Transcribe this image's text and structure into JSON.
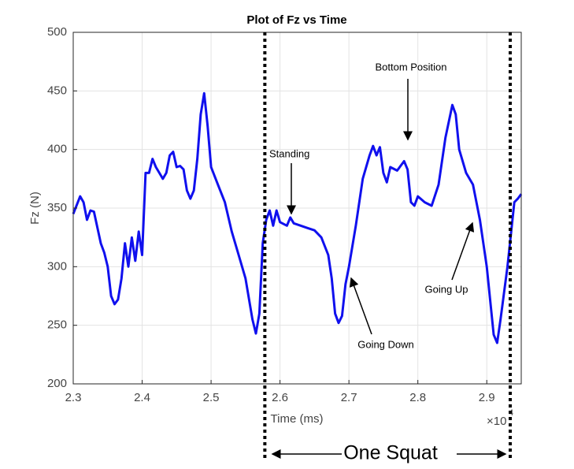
{
  "chart_data": {
    "type": "line",
    "title": "Plot of Fz vs Time",
    "x_label": "Time (ms)",
    "y_label": "Fz (N)",
    "x_multiplier": "×10",
    "x_multiplier_power": "4",
    "color": "#1010ee",
    "grid": true,
    "x": [
      23000,
      23100,
      23150,
      23200,
      23250,
      23300,
      23400,
      23450,
      23500,
      23550,
      23600,
      23650,
      23700,
      23750,
      23800,
      23850,
      23900,
      23950,
      24000,
      24050,
      24100,
      24150,
      24200,
      24250,
      24300,
      24350,
      24400,
      24450,
      24500,
      24550,
      24600,
      24650,
      24700,
      24750,
      24800,
      24850,
      24900,
      24950,
      25000,
      25100,
      25200,
      25300,
      25400,
      25500,
      25600,
      25650,
      25700,
      25750,
      25800,
      25850,
      25900,
      25950,
      26000,
      26100,
      26150,
      26200,
      26300,
      26400,
      26500,
      26600,
      26700,
      26750,
      26800,
      26850,
      26900,
      26950,
      27000,
      27100,
      27200,
      27300,
      27350,
      27400,
      27450,
      27500,
      27550,
      27600,
      27700,
      27800,
      27850,
      27900,
      27950,
      28000,
      28100,
      28200,
      28300,
      28400,
      28500,
      28550,
      28600,
      28700,
      28800,
      28900,
      29000,
      29100,
      29150,
      29200,
      29300,
      29400,
      29450,
      29500
    ],
    "values": [
      345,
      360,
      355,
      340,
      348,
      347,
      320,
      312,
      300,
      275,
      268,
      272,
      290,
      320,
      300,
      325,
      305,
      330,
      310,
      380,
      380,
      392,
      385,
      380,
      375,
      380,
      395,
      398,
      385,
      386,
      383,
      365,
      358,
      365,
      392,
      430,
      448,
      420,
      385,
      370,
      355,
      330,
      310,
      290,
      255,
      243,
      260,
      320,
      340,
      348,
      335,
      348,
      338,
      335,
      342,
      337,
      335,
      333,
      331,
      325,
      310,
      290,
      260,
      252,
      258,
      285,
      300,
      335,
      375,
      395,
      403,
      395,
      402,
      380,
      372,
      385,
      382,
      390,
      383,
      355,
      352,
      360,
      355,
      352,
      370,
      410,
      438,
      430,
      400,
      380,
      370,
      340,
      300,
      242,
      235,
      255,
      300,
      355,
      358,
      362
    ],
    "xlim": [
      23000,
      29500
    ],
    "xticks": [
      {
        "value": 23000,
        "label": "2.3"
      },
      {
        "value": 24000,
        "label": "2.4"
      },
      {
        "value": 25000,
        "label": "2.5"
      },
      {
        "value": 26000,
        "label": "2.6"
      },
      {
        "value": 27000,
        "label": "2.7"
      },
      {
        "value": 28000,
        "label": "2.8"
      },
      {
        "value": 29000,
        "label": "2.9"
      }
    ],
    "ylim": [
      200,
      500
    ],
    "yticks": [
      200,
      250,
      300,
      350,
      400,
      450,
      500
    ],
    "vlines": [
      25780,
      29340
    ],
    "annotations": [
      "Standing",
      "Bottom Position",
      "Going Down",
      "Going Up",
      "One Squat"
    ]
  }
}
